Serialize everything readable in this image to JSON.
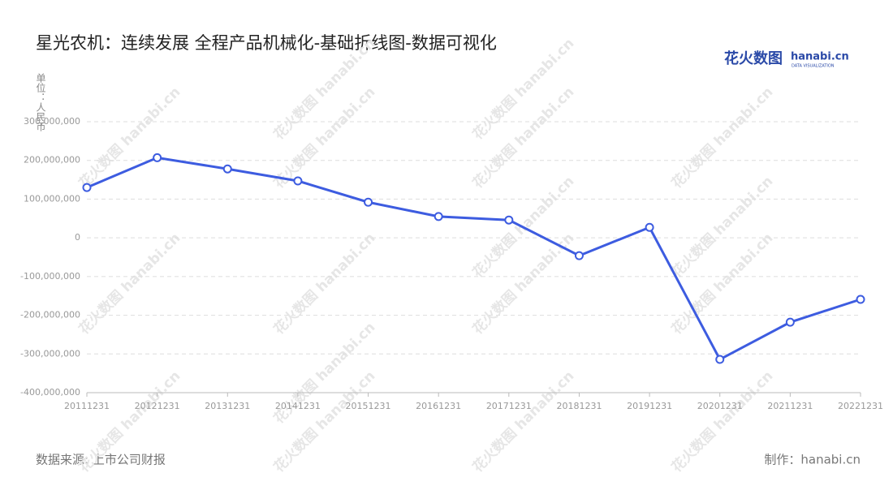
{
  "chart_data": {
    "type": "line",
    "title": "星光农机：连续发展 全程产品机械化-基础折线图-数据可视化",
    "y_label": "单位：人民币",
    "logo": {
      "cn": "花火数图",
      "en": "hanabi.cn",
      "sub": "DATA VISUALIZATION"
    },
    "watermark": "花火数图 hanabi.cn",
    "source": "数据来源: 上市公司财报",
    "credit": "制作：hanabi.cn",
    "categories": [
      "20111231",
      "20121231",
      "20131231",
      "20141231",
      "20151231",
      "20161231",
      "20171231",
      "20181231",
      "20191231",
      "20201231",
      "20211231",
      "20221231"
    ],
    "series": [
      {
        "name": "星光农机",
        "color": "#3d5ce0",
        "values": [
          130000000,
          207000000,
          178000000,
          147000000,
          92000000,
          55000000,
          46000000,
          -46000000,
          27000000,
          -314000000,
          -218000000,
          -159000000
        ]
      }
    ],
    "ylim": [
      -400000000,
      300000000
    ],
    "yticks": [
      {
        "value": -400000000,
        "label": "-400,000,000"
      },
      {
        "value": -300000000,
        "label": "-300,000,000"
      },
      {
        "value": -200000000,
        "label": "-200,000,000"
      },
      {
        "value": -100000000,
        "label": "-100,000,000"
      },
      0,
      {
        "value": 100000000,
        "label": "100,000,000"
      },
      {
        "value": 200000000,
        "label": "200,000,000"
      },
      {
        "value": 300000000,
        "label": "300,000,000"
      }
    ],
    "grid": true
  }
}
